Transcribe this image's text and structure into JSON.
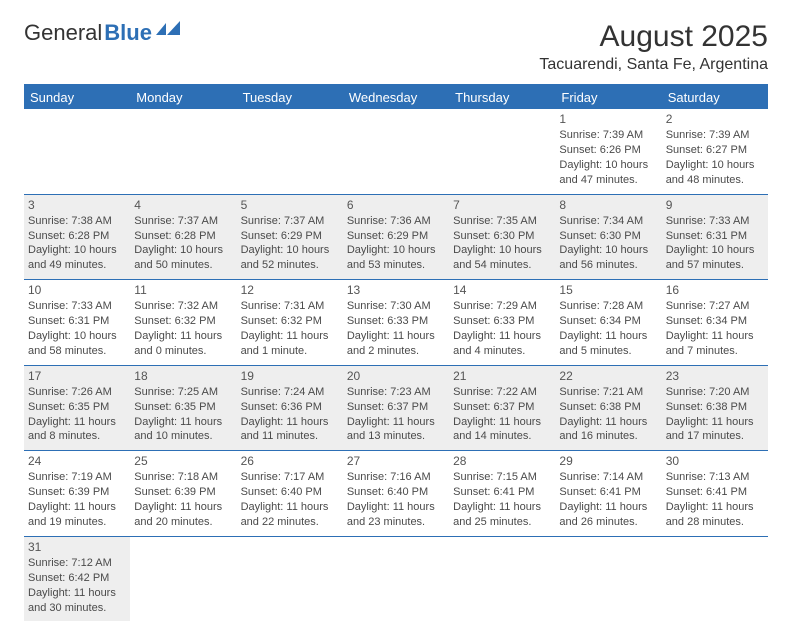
{
  "brand": {
    "part1": "General",
    "part2": "Blue"
  },
  "title": "August 2025",
  "location": "Tacuarendi, Santa Fe, Argentina",
  "colors": {
    "accent": "#2d6fb5",
    "shade": "#eeeeee",
    "text": "#4a4a4a"
  },
  "dow": [
    "Sunday",
    "Monday",
    "Tuesday",
    "Wednesday",
    "Thursday",
    "Friday",
    "Saturday"
  ],
  "weeks": [
    [
      null,
      null,
      null,
      null,
      null,
      {
        "n": "1",
        "sr": "Sunrise: 7:39 AM",
        "ss": "Sunset: 6:26 PM",
        "d1": "Daylight: 10 hours",
        "d2": "and 47 minutes."
      },
      {
        "n": "2",
        "sr": "Sunrise: 7:39 AM",
        "ss": "Sunset: 6:27 PM",
        "d1": "Daylight: 10 hours",
        "d2": "and 48 minutes."
      }
    ],
    [
      {
        "n": "3",
        "sr": "Sunrise: 7:38 AM",
        "ss": "Sunset: 6:28 PM",
        "d1": "Daylight: 10 hours",
        "d2": "and 49 minutes."
      },
      {
        "n": "4",
        "sr": "Sunrise: 7:37 AM",
        "ss": "Sunset: 6:28 PM",
        "d1": "Daylight: 10 hours",
        "d2": "and 50 minutes."
      },
      {
        "n": "5",
        "sr": "Sunrise: 7:37 AM",
        "ss": "Sunset: 6:29 PM",
        "d1": "Daylight: 10 hours",
        "d2": "and 52 minutes."
      },
      {
        "n": "6",
        "sr": "Sunrise: 7:36 AM",
        "ss": "Sunset: 6:29 PM",
        "d1": "Daylight: 10 hours",
        "d2": "and 53 minutes."
      },
      {
        "n": "7",
        "sr": "Sunrise: 7:35 AM",
        "ss": "Sunset: 6:30 PM",
        "d1": "Daylight: 10 hours",
        "d2": "and 54 minutes."
      },
      {
        "n": "8",
        "sr": "Sunrise: 7:34 AM",
        "ss": "Sunset: 6:30 PM",
        "d1": "Daylight: 10 hours",
        "d2": "and 56 minutes."
      },
      {
        "n": "9",
        "sr": "Sunrise: 7:33 AM",
        "ss": "Sunset: 6:31 PM",
        "d1": "Daylight: 10 hours",
        "d2": "and 57 minutes."
      }
    ],
    [
      {
        "n": "10",
        "sr": "Sunrise: 7:33 AM",
        "ss": "Sunset: 6:31 PM",
        "d1": "Daylight: 10 hours",
        "d2": "and 58 minutes."
      },
      {
        "n": "11",
        "sr": "Sunrise: 7:32 AM",
        "ss": "Sunset: 6:32 PM",
        "d1": "Daylight: 11 hours",
        "d2": "and 0 minutes."
      },
      {
        "n": "12",
        "sr": "Sunrise: 7:31 AM",
        "ss": "Sunset: 6:32 PM",
        "d1": "Daylight: 11 hours",
        "d2": "and 1 minute."
      },
      {
        "n": "13",
        "sr": "Sunrise: 7:30 AM",
        "ss": "Sunset: 6:33 PM",
        "d1": "Daylight: 11 hours",
        "d2": "and 2 minutes."
      },
      {
        "n": "14",
        "sr": "Sunrise: 7:29 AM",
        "ss": "Sunset: 6:33 PM",
        "d1": "Daylight: 11 hours",
        "d2": "and 4 minutes."
      },
      {
        "n": "15",
        "sr": "Sunrise: 7:28 AM",
        "ss": "Sunset: 6:34 PM",
        "d1": "Daylight: 11 hours",
        "d2": "and 5 minutes."
      },
      {
        "n": "16",
        "sr": "Sunrise: 7:27 AM",
        "ss": "Sunset: 6:34 PM",
        "d1": "Daylight: 11 hours",
        "d2": "and 7 minutes."
      }
    ],
    [
      {
        "n": "17",
        "sr": "Sunrise: 7:26 AM",
        "ss": "Sunset: 6:35 PM",
        "d1": "Daylight: 11 hours",
        "d2": "and 8 minutes."
      },
      {
        "n": "18",
        "sr": "Sunrise: 7:25 AM",
        "ss": "Sunset: 6:35 PM",
        "d1": "Daylight: 11 hours",
        "d2": "and 10 minutes."
      },
      {
        "n": "19",
        "sr": "Sunrise: 7:24 AM",
        "ss": "Sunset: 6:36 PM",
        "d1": "Daylight: 11 hours",
        "d2": "and 11 minutes."
      },
      {
        "n": "20",
        "sr": "Sunrise: 7:23 AM",
        "ss": "Sunset: 6:37 PM",
        "d1": "Daylight: 11 hours",
        "d2": "and 13 minutes."
      },
      {
        "n": "21",
        "sr": "Sunrise: 7:22 AM",
        "ss": "Sunset: 6:37 PM",
        "d1": "Daylight: 11 hours",
        "d2": "and 14 minutes."
      },
      {
        "n": "22",
        "sr": "Sunrise: 7:21 AM",
        "ss": "Sunset: 6:38 PM",
        "d1": "Daylight: 11 hours",
        "d2": "and 16 minutes."
      },
      {
        "n": "23",
        "sr": "Sunrise: 7:20 AM",
        "ss": "Sunset: 6:38 PM",
        "d1": "Daylight: 11 hours",
        "d2": "and 17 minutes."
      }
    ],
    [
      {
        "n": "24",
        "sr": "Sunrise: 7:19 AM",
        "ss": "Sunset: 6:39 PM",
        "d1": "Daylight: 11 hours",
        "d2": "and 19 minutes."
      },
      {
        "n": "25",
        "sr": "Sunrise: 7:18 AM",
        "ss": "Sunset: 6:39 PM",
        "d1": "Daylight: 11 hours",
        "d2": "and 20 minutes."
      },
      {
        "n": "26",
        "sr": "Sunrise: 7:17 AM",
        "ss": "Sunset: 6:40 PM",
        "d1": "Daylight: 11 hours",
        "d2": "and 22 minutes."
      },
      {
        "n": "27",
        "sr": "Sunrise: 7:16 AM",
        "ss": "Sunset: 6:40 PM",
        "d1": "Daylight: 11 hours",
        "d2": "and 23 minutes."
      },
      {
        "n": "28",
        "sr": "Sunrise: 7:15 AM",
        "ss": "Sunset: 6:41 PM",
        "d1": "Daylight: 11 hours",
        "d2": "and 25 minutes."
      },
      {
        "n": "29",
        "sr": "Sunrise: 7:14 AM",
        "ss": "Sunset: 6:41 PM",
        "d1": "Daylight: 11 hours",
        "d2": "and 26 minutes."
      },
      {
        "n": "30",
        "sr": "Sunrise: 7:13 AM",
        "ss": "Sunset: 6:41 PM",
        "d1": "Daylight: 11 hours",
        "d2": "and 28 minutes."
      }
    ],
    [
      {
        "n": "31",
        "sr": "Sunrise: 7:12 AM",
        "ss": "Sunset: 6:42 PM",
        "d1": "Daylight: 11 hours",
        "d2": "and 30 minutes."
      },
      null,
      null,
      null,
      null,
      null,
      null
    ]
  ],
  "shaded_rows": [
    1,
    3,
    5
  ]
}
